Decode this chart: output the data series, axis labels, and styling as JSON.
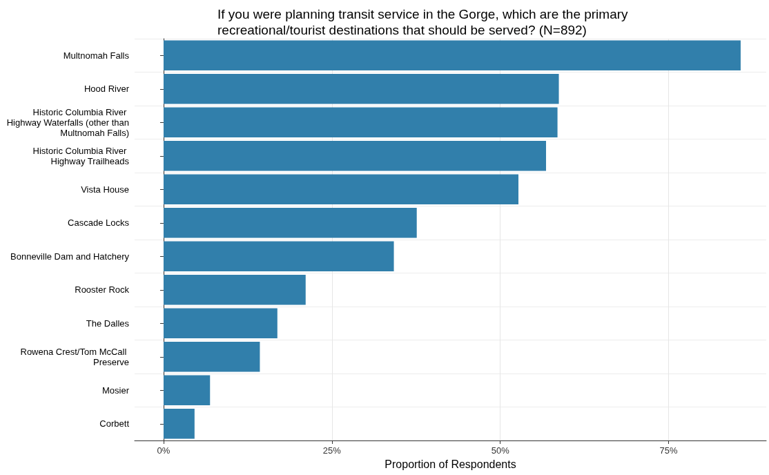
{
  "chart_data": {
    "type": "bar",
    "orientation": "horizontal",
    "title": "If you were planning transit service in the Gorge, which are the primary recreational/tourist destinations that should be served? (N=892)",
    "xlabel": "Proportion of Respondents",
    "categories": [
      "Multnomah Falls",
      "Hood River",
      "Historic Columbia River Highway Waterfalls (other than Multnomah Falls)",
      "Historic Columbia River Highway Trailheads",
      "Vista House",
      "Cascade Locks",
      "Bonneville Dam and Hatchery",
      "Rooster Rock",
      "The Dalles",
      "Rowena Crest/Tom McCall Preserve",
      "Mosier",
      "Corbett"
    ],
    "values": [
      85.7,
      58.7,
      58.5,
      56.8,
      52.7,
      37.6,
      34.2,
      21.1,
      16.9,
      14.3,
      6.9,
      4.6
    ],
    "color": "#317fab",
    "xlim": [
      -4.3,
      89.5
    ],
    "xticks": [
      {
        "value": 0,
        "label": "0%"
      },
      {
        "value": 25,
        "label": "25%"
      },
      {
        "value": 50,
        "label": "50%"
      },
      {
        "value": 75,
        "label": "75%"
      }
    ],
    "grid": true
  }
}
